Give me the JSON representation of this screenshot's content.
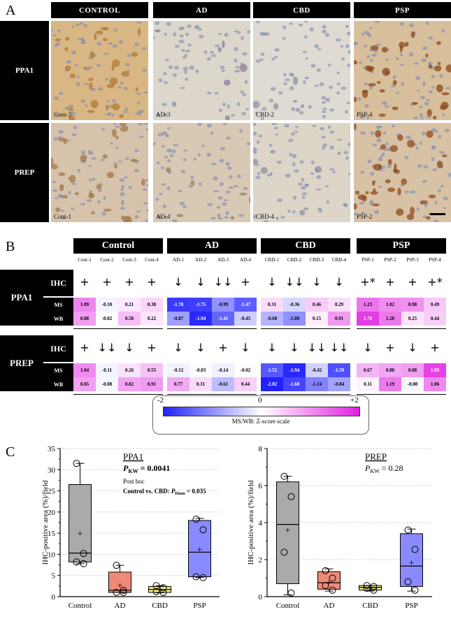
{
  "panel_a": {
    "letter": "A",
    "columns": [
      "CONTROL",
      "AD",
      "CBD",
      "PSP"
    ],
    "rows": [
      {
        "label": "PPA1",
        "images": [
          {
            "caption": "Cont-3",
            "bg": "#d9b784",
            "stain": "#b07a3a"
          },
          {
            "caption": "AD-3",
            "bg": "#dcd6cb",
            "stain": "#8a7f9a"
          },
          {
            "caption": "CBD-2",
            "bg": "#dfdad2",
            "stain": "#8e93a4"
          },
          {
            "caption": "PSP-4",
            "bg": "#d8bf9c",
            "stain": "#8c4a1c"
          }
        ]
      },
      {
        "label": "PREP",
        "images": [
          {
            "caption": "Cont-1",
            "bg": "#d7c3ab",
            "stain": "#a4784a"
          },
          {
            "caption": "AD-4",
            "bg": "#d8c9b4",
            "stain": "#9b7d5d"
          },
          {
            "caption": "CBD-4",
            "bg": "#dcd5c8",
            "stain": "#8f8fa2"
          },
          {
            "caption": "PSP-2",
            "bg": "#d8c2a6",
            "stain": "#914c1e"
          }
        ]
      }
    ]
  },
  "panel_b": {
    "letter": "B",
    "groups": [
      {
        "name": "Control",
        "samples": [
          "Cont-1",
          "Cont-2",
          "Cont-3",
          "Cont-4"
        ]
      },
      {
        "name": "AD",
        "samples": [
          "AD-1",
          "AD-2",
          "AD-3",
          "AD-4"
        ]
      },
      {
        "name": "CBD",
        "samples": [
          "CBD-1",
          "CBD-2",
          "CBD-3",
          "CBD-4"
        ]
      },
      {
        "name": "PSP",
        "samples": [
          "PSP-1",
          "PSP-2",
          "PSP-3",
          "PSP-4"
        ]
      }
    ],
    "proteins": [
      {
        "name": "PPA1",
        "ihc_label": "IHC",
        "ihc": [
          "+",
          "+",
          "+",
          "+",
          "↓",
          "↓",
          "↓↓",
          "+",
          "↓",
          "↓↓",
          "↓",
          "↓",
          "+*",
          "+",
          "+",
          "+*"
        ],
        "rows": [
          {
            "label": "MS",
            "values": [
              "1.09",
              "-0.10",
              "0.21",
              "0.38",
              "-1.78",
              "-1.75",
              "-0.99",
              "-1.47",
              "0.31",
              "-0.36",
              "0.46",
              "0.29",
              "1.23",
              "1.02",
              "0.98",
              "0.49"
            ]
          },
          {
            "label": "WB",
            "values": [
              "0.88",
              "-0.02",
              "0.58",
              "0.22",
              "-0.87",
              "-1.94",
              "-1.41",
              "-0.45",
              "-0.68",
              "-1.00",
              "0.15",
              "0.91",
              "1.76",
              "1.20",
              "0.25",
              "0.44"
            ]
          }
        ]
      },
      {
        "name": "PREP",
        "ihc_label": "IHC",
        "ihc": [
          "+",
          "↓↓",
          "↓",
          "+",
          "↓",
          "↓",
          "+",
          "↓",
          "↓",
          "↓",
          "↓↓",
          "↓↓",
          "↓",
          "+",
          "↓",
          "+"
        ],
        "rows": [
          {
            "label": "MS",
            "values": [
              "1.04",
              "-0.11",
              "0.26",
              "0.55",
              "-0.12",
              "-0.03",
              "-0.14",
              "-0.02",
              "-1.52",
              "-1.94",
              "-0.42",
              "-1.59",
              "0.67",
              "0.80",
              "0.88",
              "1.69"
            ]
          },
          {
            "label": "WB",
            "values": [
              "0.85",
              "-0.08",
              "0.82",
              "0.91",
              "0.77",
              "0.31",
              "-0.61",
              "0.44",
              "-2.02",
              "-1.68",
              "-1.14",
              "-0.84",
              "0.11",
              "1.19",
              "-0.08",
              "1.06"
            ]
          }
        ]
      }
    ],
    "scale": {
      "min": "-2",
      "mid": "0",
      "max": "+2",
      "caption": "MS/WB: Z-score scale",
      "color_low": "#2222ff",
      "color_mid": "#ffffff",
      "color_high": "#e020e0"
    }
  },
  "panel_c": {
    "letter": "C",
    "chart_data": [
      {
        "type": "box",
        "title": "PPA1",
        "stat": "P",
        "stat_sub": "KW",
        "stat_value": "= 0.0041",
        "posthoc_title": "Post hoc",
        "posthoc_comparison": "Control vs. CBD:",
        "posthoc_stat": "P",
        "posthoc_sub": "Dunn",
        "posthoc_value": "= 0.035",
        "ylabel": "IHC-positive area (%)/field",
        "ylim": [
          0,
          35
        ],
        "yticks": [
          "0",
          "5",
          "10",
          "15",
          "20",
          "25",
          "30",
          "35"
        ],
        "categories": [
          "Control",
          "AD",
          "CBD",
          "PSP"
        ],
        "colors": [
          "#aaaaaa",
          "#ee8a78",
          "#f0ea80",
          "#8a8aff"
        ],
        "boxes": [
          {
            "min": 7.8,
            "q1": 8.2,
            "median": 10.3,
            "q3": 26.5,
            "max": 31.5,
            "mean": 15,
            "points": [
              31.5,
              10.2,
              8.2,
              7.8
            ]
          },
          {
            "min": 1,
            "q1": 1,
            "median": 1.5,
            "q3": 5.8,
            "max": 7.4,
            "mean": 2.7,
            "points": [
              7.4,
              1.5,
              1,
              1
            ]
          },
          {
            "min": 0.9,
            "q1": 1,
            "median": 1.7,
            "q3": 2.4,
            "max": 2.6,
            "mean": 1.8,
            "points": [
              2.6,
              2.1,
              1.2,
              1
            ]
          },
          {
            "min": 4.5,
            "q1": 4.7,
            "median": 10.5,
            "q3": 18,
            "max": 18.5,
            "mean": 11.2,
            "points": [
              18.3,
              15.8,
              4.7,
              4.5
            ]
          }
        ]
      },
      {
        "type": "box",
        "title": "PREP",
        "stat": "P",
        "stat_sub": "KW",
        "stat_value": "= 0.28",
        "ylabel": "IHC-positive area (%)/field",
        "ylim": [
          0,
          8
        ],
        "yticks": [
          "0",
          "2",
          "4",
          "6",
          "8"
        ],
        "categories": [
          "Control",
          "AD",
          "CBD",
          "PSP"
        ],
        "colors": [
          "#aaaaaa",
          "#ee8a78",
          "#f0ea80",
          "#8a8aff"
        ],
        "boxes": [
          {
            "min": 0.1,
            "q1": 0.7,
            "median": 3.9,
            "q3": 6.2,
            "max": 6.5,
            "mean": 3.6,
            "points": [
              6.5,
              5.4,
              2.4,
              0.2
            ]
          },
          {
            "min": 0.3,
            "q1": 0.4,
            "median": 0.75,
            "q3": 1.35,
            "max": 1.5,
            "mean": 0.8,
            "points": [
              1.4,
              1.0,
              0.6,
              0.35
            ]
          },
          {
            "min": 0.3,
            "q1": 0.35,
            "median": 0.5,
            "q3": 0.6,
            "max": 0.6,
            "mean": 0.5,
            "points": [
              0.6,
              0.55,
              0.45,
              0.35
            ]
          },
          {
            "min": 0.3,
            "q1": 0.55,
            "median": 1.65,
            "q3": 3.4,
            "max": 3.65,
            "mean": 1.85,
            "points": [
              3.6,
              2.55,
              0.8,
              0.35
            ]
          }
        ]
      }
    ]
  }
}
